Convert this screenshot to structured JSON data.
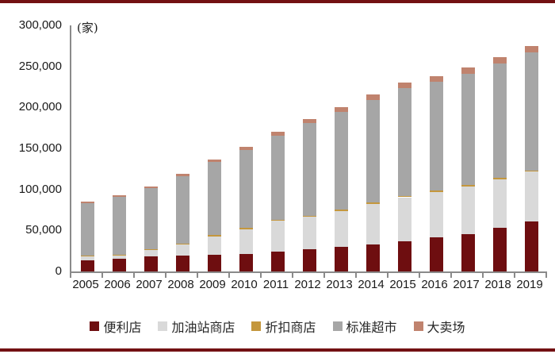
{
  "chart_data": {
    "type": "bar",
    "stacked": true,
    "unit": "(家)",
    "categories": [
      "2005",
      "2006",
      "2007",
      "2008",
      "2009",
      "2010",
      "2011",
      "2012",
      "2013",
      "2014",
      "2015",
      "2016",
      "2017",
      "2018",
      "2019"
    ],
    "series": [
      {
        "key": "convenience-store",
        "name": "便利店",
        "color": "#6e0e10",
        "values": [
          13500,
          15500,
          18000,
          19500,
          20500,
          21500,
          24000,
          27000,
          30000,
          33000,
          36500,
          41500,
          45500,
          53500,
          61000
        ]
      },
      {
        "key": "gas-station-store",
        "name": "加油站商店",
        "color": "#d9d9d9",
        "values": [
          5000,
          4000,
          8000,
          13000,
          22500,
          30000,
          37500,
          39500,
          44000,
          49500,
          54000,
          55500,
          58500,
          59000,
          60500
        ]
      },
      {
        "key": "discount-store",
        "name": "折扣商店",
        "color": "#c4973d",
        "values": [
          1000,
          1000,
          1000,
          1500,
          1500,
          1500,
          1500,
          1500,
          1500,
          1500,
          1500,
          1500,
          1500,
          1500,
          1500
        ]
      },
      {
        "key": "standard-supermarket",
        "name": "标准超市",
        "color": "#a6a6a6",
        "values": [
          63500,
          70500,
          75000,
          82400,
          89000,
          95500,
          102500,
          112500,
          119500,
          125500,
          131500,
          132500,
          135600,
          139600,
          144000
        ]
      },
      {
        "key": "hypermarket",
        "name": "大卖场",
        "color": "#c0836e",
        "values": [
          2000,
          2000,
          2000,
          2600,
          3000,
          3500,
          4500,
          5000,
          5500,
          6000,
          6500,
          7000,
          7400,
          7400,
          7500
        ]
      }
    ],
    "totals": [
      85000,
      93000,
      104000,
      119000,
      136500,
      152000,
      170000,
      185500,
      200500,
      215500,
      230000,
      238000,
      248500,
      261000,
      274500
    ],
    "ylim": [
      0,
      300000
    ],
    "yticks": [
      {
        "label": "0",
        "value": 0
      },
      {
        "label": "50,000",
        "value": 50000
      },
      {
        "label": "100,000",
        "value": 100000
      },
      {
        "label": "150,000",
        "value": 150000
      },
      {
        "label": "200,000",
        "value": 200000
      },
      {
        "label": "250,000",
        "value": 250000
      },
      {
        "label": "300,000",
        "value": 300000
      }
    ],
    "grid": false,
    "legend_position": "bottom",
    "frame_color": "#731113",
    "axis_color": "#8a8a8a"
  }
}
